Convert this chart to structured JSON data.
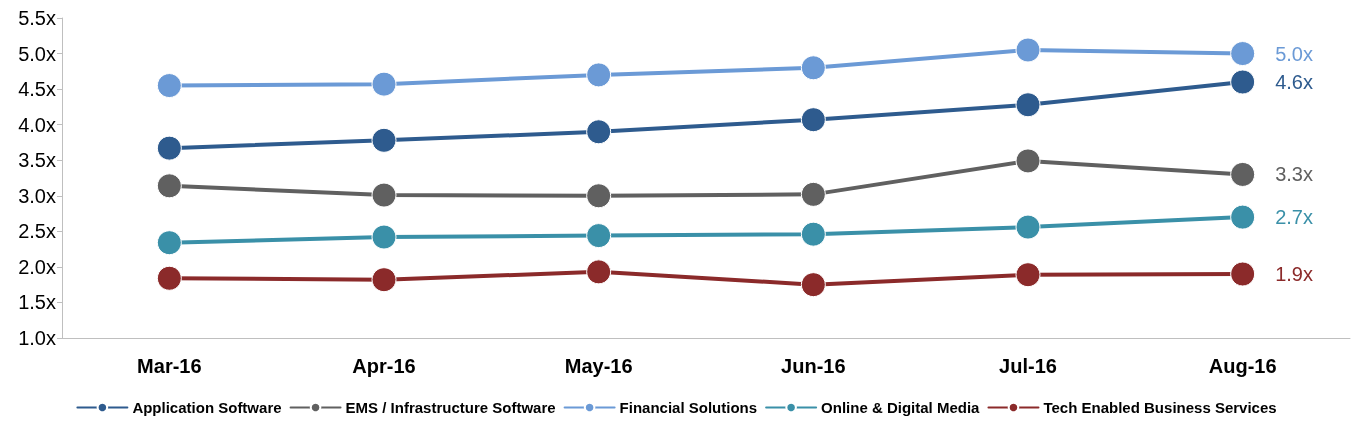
{
  "chart_data": {
    "type": "line",
    "categories": [
      "Mar-16",
      "Apr-16",
      "May-16",
      "Jun-16",
      "Jul-16",
      "Aug-16"
    ],
    "series": [
      {
        "name": "Application Software",
        "color": "#2e5b8e",
        "values": [
          3.67,
          3.78,
          3.9,
          4.07,
          4.28,
          4.6
        ],
        "value_labels": [
          null,
          null,
          null,
          null,
          null,
          "4.6x"
        ]
      },
      {
        "name": "EMS / Infrastructure Software",
        "color": "#606060",
        "values": [
          3.14,
          3.01,
          3.0,
          3.02,
          3.49,
          3.3
        ],
        "value_labels": [
          null,
          null,
          null,
          null,
          null,
          "3.3x"
        ]
      },
      {
        "name": "Financial Solutions",
        "color": "#6b9ad6",
        "values": [
          4.55,
          4.57,
          4.7,
          4.8,
          5.05,
          5.0
        ],
        "value_labels": [
          null,
          null,
          null,
          null,
          null,
          "5.0x"
        ]
      },
      {
        "name": "Online & Digital Media",
        "color": "#3a90a8",
        "values": [
          2.34,
          2.42,
          2.44,
          2.46,
          2.56,
          2.7
        ],
        "value_labels": [
          null,
          null,
          null,
          null,
          null,
          "2.7x"
        ]
      },
      {
        "name": "Tech Enabled Business Services",
        "color": "#8b2a2a",
        "values": [
          1.84,
          1.82,
          1.93,
          1.75,
          1.89,
          1.9
        ],
        "value_labels": [
          null,
          null,
          null,
          null,
          null,
          "1.9x"
        ]
      }
    ],
    "ylim": [
      1.0,
      5.5
    ],
    "yticks": [
      {
        "value": 1.0,
        "label": "1.0x"
      },
      {
        "value": 1.5,
        "label": "1.5x"
      },
      {
        "value": 2.0,
        "label": "2.0x"
      },
      {
        "value": 2.5,
        "label": "2.5x"
      },
      {
        "value": 3.0,
        "label": "3.0x"
      },
      {
        "value": 3.5,
        "label": "3.5x"
      },
      {
        "value": 4.0,
        "label": "4.0x"
      },
      {
        "value": 4.5,
        "label": "4.5x"
      },
      {
        "value": 5.0,
        "label": "5.0x"
      },
      {
        "value": 5.5,
        "label": "5.5x"
      }
    ],
    "grid": false,
    "legend": "bottom",
    "marker": "circle",
    "line_style": "solid"
  }
}
